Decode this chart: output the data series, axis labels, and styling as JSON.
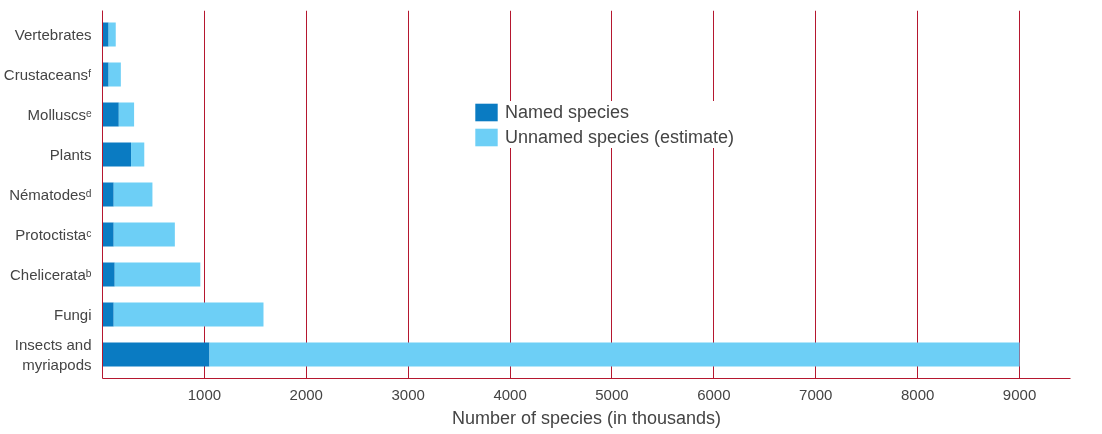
{
  "chart_data": {
    "type": "bar",
    "orientation": "horizontal",
    "stacked": true,
    "categories": [
      "Vertebrates",
      "Crustaceansᶠ",
      "Molluscsᵉ",
      "Plants",
      "Nématodesᵈ",
      "Protoctistaᶜ",
      "Chelicerataᵇ",
      "Fungi",
      "Insects and\nmyriapods"
    ],
    "series": [
      {
        "name": "Named species",
        "color": "#0a7bc2",
        "values": [
          60,
          60,
          160,
          280,
          110,
          110,
          120,
          110,
          1050
        ]
      },
      {
        "name": "Unnamed species (estimate)",
        "color": "#6dcff6",
        "values": [
          70,
          120,
          150,
          130,
          380,
          600,
          840,
          1470,
          7950
        ]
      }
    ],
    "xlabel": "Number of species (in thousands)",
    "xlim": [
      0,
      9500
    ],
    "xticks": [
      1000,
      2000,
      3000,
      4000,
      5000,
      6000,
      7000,
      8000,
      9000
    ],
    "grid": "x",
    "legend": "top right"
  }
}
